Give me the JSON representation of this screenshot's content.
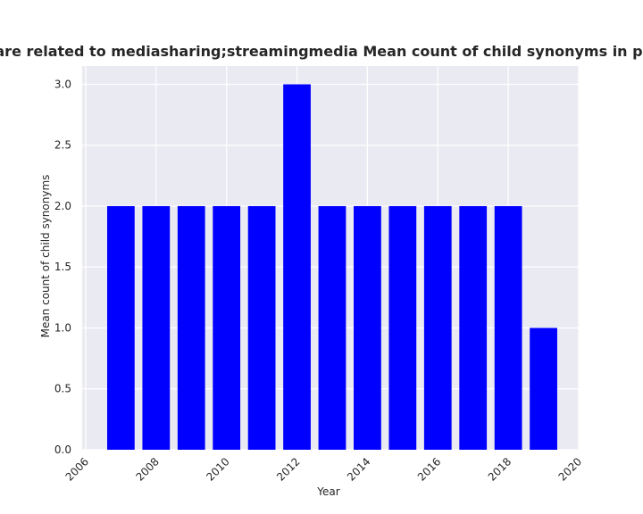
{
  "chart_data": {
    "type": "bar",
    "title": "Categories are related to mediasharing;streamingmedia Mean count of child synonyms in privacy policies",
    "xlabel": "Year",
    "ylabel": "Mean count of child synonyms",
    "x": [
      2007,
      2008,
      2009,
      2010,
      2011,
      2012,
      2013,
      2014,
      2015,
      2016,
      2017,
      2018,
      2019
    ],
    "values": [
      2,
      2,
      2,
      2,
      2,
      3,
      2,
      2,
      2,
      2,
      2,
      2,
      1
    ],
    "xlim": [
      2005.9,
      2020.0
    ],
    "ylim": [
      0,
      3.15
    ],
    "xticks": [
      "2006",
      "2008",
      "2010",
      "2012",
      "2014",
      "2016",
      "2018",
      "2020"
    ],
    "yticks": [
      "0.0",
      "0.5",
      "1.0",
      "1.5",
      "2.0",
      "2.5",
      "3.0"
    ],
    "bar_color": "#0000ff",
    "background_color": "#eaeaf2",
    "grid": true
  }
}
